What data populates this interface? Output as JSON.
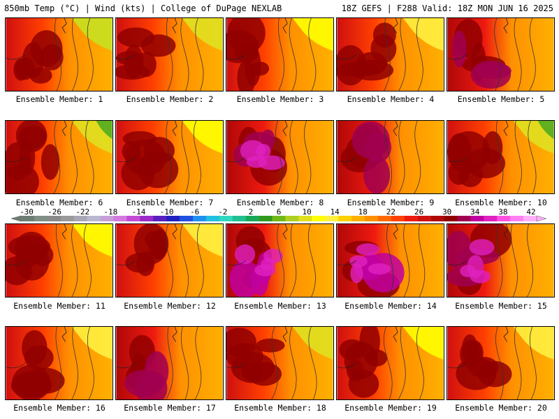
{
  "header": {
    "left": "850mb Temp (°C) | Wind (kts) | College of DuPage NEXLAB",
    "right": "18Z GEFS | F288 Valid: 18Z MON JUN 16 2025"
  },
  "panels": [
    {
      "label": "Ensemble Member: 1",
      "warmth": 0.55
    },
    {
      "label": "Ensemble Member: 2",
      "warmth": 0.55
    },
    {
      "label": "Ensemble Member: 3",
      "warmth": 0.6
    },
    {
      "label": "Ensemble Member: 4",
      "warmth": 0.5
    },
    {
      "label": "Ensemble Member: 5",
      "warmth": 0.75
    },
    {
      "label": "Ensemble Member: 6",
      "warmth": 0.45
    },
    {
      "label": "Ensemble Member: 7",
      "warmth": 0.55
    },
    {
      "label": "Ensemble Member: 8",
      "warmth": 0.8
    },
    {
      "label": "Ensemble Member: 9",
      "warmth": 0.75
    },
    {
      "label": "Ensemble Member: 10",
      "warmth": 0.45
    },
    {
      "label": "Ensemble Member: 11",
      "warmth": 0.55
    },
    {
      "label": "Ensemble Member: 12",
      "warmth": 0.6
    },
    {
      "label": "Ensemble Member: 13",
      "warmth": 0.9
    },
    {
      "label": "Ensemble Member: 14",
      "warmth": 0.85
    },
    {
      "label": "Ensemble Member: 15",
      "warmth": 0.8
    },
    {
      "label": "Ensemble Member: 16",
      "warmth": 0.5
    },
    {
      "label": "Ensemble Member: 17",
      "warmth": 0.75
    },
    {
      "label": "Ensemble Member: 18",
      "warmth": 0.65
    },
    {
      "label": "Ensemble Member: 19",
      "warmth": 0.5
    },
    {
      "label": "Ensemble Member: 20",
      "warmth": 0.5
    }
  ],
  "colorbar": {
    "ticks": [
      "-30",
      "-26",
      "-22",
      "-18",
      "-14",
      "-10",
      "-6",
      "-2",
      "2",
      "6",
      "10",
      "14",
      "18",
      "22",
      "26",
      "30",
      "34",
      "38",
      "42"
    ],
    "colors": [
      "#6e7d73",
      "#7f8f85",
      "#8a8a8a",
      "#9a9a9a",
      "#a7a7b8",
      "#b8b8d0",
      "#c79fd8",
      "#d479e0",
      "#c24bd6",
      "#9a2bc9",
      "#5a1fbf",
      "#2020c0",
      "#2050e0",
      "#2090f0",
      "#20c0e0",
      "#30d8c0",
      "#20c090",
      "#18a858",
      "#309a20",
      "#70b818",
      "#b0d020",
      "#e0e020",
      "#ffff00",
      "#fff040",
      "#ffd000",
      "#ffb000",
      "#ff9000",
      "#ff6a00",
      "#ff4000",
      "#ee1a10",
      "#d01010",
      "#b00808",
      "#900000",
      "#a00050",
      "#c000a0",
      "#e020c0",
      "#ff50e0",
      "#ff80f0",
      "#ffb0f8"
    ]
  }
}
